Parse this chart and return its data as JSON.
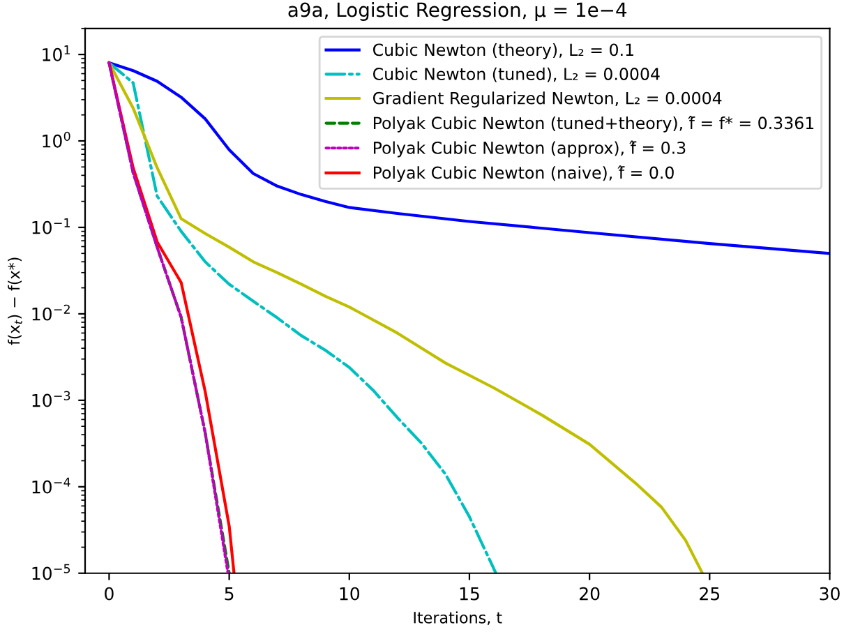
{
  "chart_data": {
    "type": "line",
    "title": "a9a, Logistic Regression, μ = 1e−4",
    "xlabel": "Iterations, t",
    "ylabel": "f(x$_{t}$) − f(x*)",
    "log": "y",
    "xlim": [
      -1,
      30
    ],
    "xticks": [
      0,
      5,
      10,
      15,
      20,
      25,
      30
    ],
    "ylim": [
      1e-05,
      20
    ],
    "yticks": [
      {
        "value": 1e-05,
        "label": "10$^{−5}$"
      },
      {
        "value": 0.0001,
        "label": "10$^{−4}$"
      },
      {
        "value": 0.001,
        "label": "10$^{−3}$"
      },
      {
        "value": 0.01,
        "label": "10$^{−2}$"
      },
      {
        "value": 0.1,
        "label": "10$^{−1}$"
      },
      {
        "value": 1,
        "label": "10$^{0}$"
      },
      {
        "value": 10,
        "label": "10$^{1}$"
      }
    ],
    "grid": false,
    "legend": "top right",
    "marker": "none",
    "series": [
      {
        "name": "Cubic Newton (theory), L₂ = 0.1",
        "color": "#0000ff",
        "line_style": "solid",
        "x": [
          0,
          1,
          2,
          3,
          4,
          5,
          6,
          7,
          8,
          9,
          10,
          12,
          15,
          20,
          25,
          30
        ],
        "values": [
          8,
          6.5,
          4.9,
          3.2,
          1.8,
          0.79,
          0.42,
          0.3,
          0.24,
          0.2,
          0.17,
          0.145,
          0.117,
          0.087,
          0.065,
          0.05
        ]
      },
      {
        "name": "Cubic Newton (tuned), L₂ = 0.0004",
        "color": "#00bfbf",
        "line_style": "dashdot",
        "x": [
          0,
          1,
          2,
          3,
          4,
          5,
          6,
          7,
          8,
          9,
          10,
          11,
          12,
          13,
          14,
          15,
          16,
          16.1
        ],
        "values": [
          8,
          4.7,
          0.23,
          0.09,
          0.04,
          0.022,
          0.014,
          0.009,
          0.0056,
          0.0038,
          0.0024,
          0.0013,
          0.00063,
          0.00032,
          0.00014,
          4.5e-05,
          1.15e-05,
          1e-05
        ]
      },
      {
        "name": "Gradient Regularized Newton, L₂ = 0.0004",
        "color": "#bfbf00",
        "line_style": "solid",
        "x": [
          0,
          1,
          2,
          3,
          4,
          5,
          6,
          7,
          8,
          9,
          10,
          12,
          14,
          16,
          18,
          20,
          22,
          23,
          24,
          24.7
        ],
        "values": [
          8,
          2.4,
          0.49,
          0.126,
          0.085,
          0.059,
          0.04,
          0.03,
          0.022,
          0.016,
          0.012,
          0.006,
          0.0027,
          0.0014,
          0.00068,
          0.00031,
          0.000105,
          5.8e-05,
          2.4e-05,
          1e-05
        ]
      },
      {
        "name": "Polyak Cubic Newton (tuned+theory), f̂ = f* = 0.3361",
        "color": "#008000",
        "line_style": "dashed",
        "x": [
          0,
          1,
          2,
          3,
          4,
          5
        ],
        "values": [
          8,
          0.43,
          0.059,
          0.0091,
          0.00042,
          1e-05
        ]
      },
      {
        "name": "Polyak Cubic Newton (approx), f̂ = 0.3",
        "color": "#bf00bf",
        "line_style": "dotted",
        "x": [
          0,
          1,
          2,
          3,
          4,
          4.95
        ],
        "values": [
          8,
          0.43,
          0.059,
          0.0091,
          0.00042,
          1e-05
        ]
      },
      {
        "name": "Polyak Cubic Newton (naive), f̂ = 0.0",
        "color": "#ff0000",
        "line_style": "solid",
        "x": [
          0,
          1,
          2,
          3,
          4,
          5,
          5.2
        ],
        "values": [
          8,
          0.49,
          0.068,
          0.023,
          0.00126,
          3.5e-05,
          1e-05
        ]
      }
    ]
  }
}
